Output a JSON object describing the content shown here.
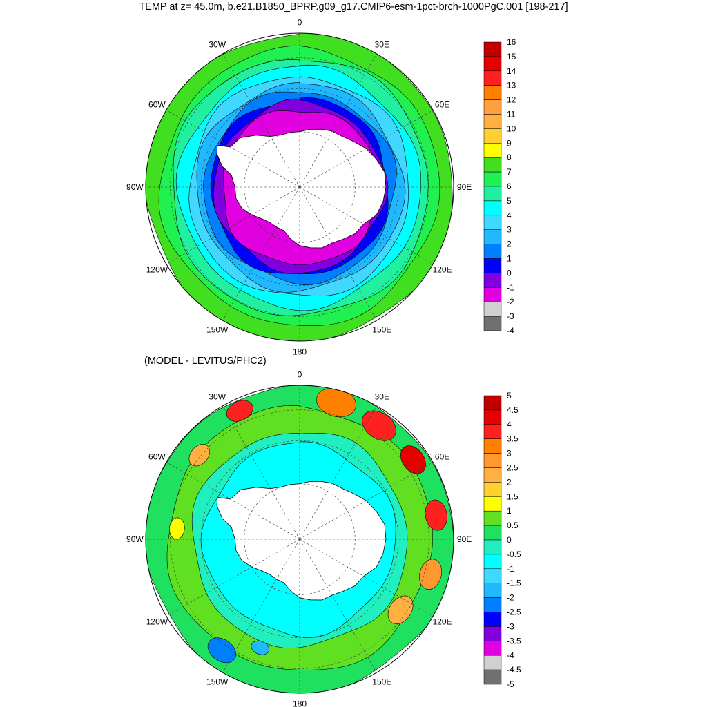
{
  "title": "TEMP at z=  45.0m, b.e21.B1850_BPRP.g09_g17.CMIP6-esm-1pct-brch-1000PgC.001 [198-217]",
  "subtitle": "(MODEL - LEVITUS/PHC2)",
  "lon_labels": [
    {
      "text": "0",
      "lon": 0
    },
    {
      "text": "30E",
      "lon": 30
    },
    {
      "text": "60E",
      "lon": 60
    },
    {
      "text": "90E",
      "lon": 90
    },
    {
      "text": "120E",
      "lon": 120
    },
    {
      "text": "150E",
      "lon": 150
    },
    {
      "text": "180",
      "lon": 180
    },
    {
      "text": "150W",
      "lon": -150
    },
    {
      "text": "120W",
      "lon": -120
    },
    {
      "text": "90W",
      "lon": -90
    },
    {
      "text": "60W",
      "lon": -60
    },
    {
      "text": "30W",
      "lon": -30
    }
  ],
  "panels": [
    {
      "name": "temperature",
      "colorbar": {
        "labels": [
          "16",
          "15",
          "14",
          "13",
          "12",
          "11",
          "10",
          "9",
          "8",
          "7",
          "6",
          "5",
          "4",
          "3",
          "2",
          "1",
          "0",
          "-1",
          "-2",
          "-3",
          "-4"
        ],
        "colors": [
          "#c00000",
          "#e80000",
          "#ff2020",
          "#ff8000",
          "#ffa040",
          "#ffb040",
          "#ffd030",
          "#ffff00",
          "#40e020",
          "#20f050",
          "#20f0a0",
          "#00ffff",
          "#40d8ff",
          "#20b8ff",
          "#0080ff",
          "#0000ff",
          "#8000e0",
          "#e000e0",
          "#d0d0d0",
          "#707070"
        ]
      },
      "field": {
        "bands": [
          {
            "rho": 1.0,
            "color": "#40e020"
          },
          {
            "rho": 0.9,
            "color": "#20f050"
          },
          {
            "rho": 0.84,
            "color": "#20f0a0"
          },
          {
            "rho": 0.78,
            "color": "#00ffff"
          },
          {
            "rho": 0.72,
            "color": "#40d8ff"
          },
          {
            "rho": 0.67,
            "color": "#20b8ff"
          },
          {
            "rho": 0.62,
            "color": "#0080ff"
          },
          {
            "rho": 0.58,
            "color": "#0000ff"
          },
          {
            "rho": 0.55,
            "color": "#8000e0"
          },
          {
            "rho": 0.51,
            "color": "#e000e0"
          }
        ]
      }
    },
    {
      "name": "model-minus-levitus",
      "colorbar": {
        "labels": [
          "5",
          "4.5",
          "4",
          "3.5",
          "3",
          "2.5",
          "2",
          "1.5",
          "1",
          "0.5",
          "0",
          "-0.5",
          "-1",
          "-1.5",
          "-2",
          "-2.5",
          "-3",
          "-3.5",
          "-4",
          "-4.5",
          "-5"
        ],
        "colors": [
          "#c00000",
          "#e80000",
          "#ff2020",
          "#ff8000",
          "#ff9830",
          "#ffb040",
          "#ffd030",
          "#ffff00",
          "#60e020",
          "#20e060",
          "#20f0c0",
          "#00ffff",
          "#40d8ff",
          "#20b8ff",
          "#0080ff",
          "#0000ff",
          "#8000e0",
          "#e000e0",
          "#d0d0d0",
          "#707070"
        ]
      },
      "field": {
        "bands": [
          {
            "rho": 1.0,
            "color": "#20e060"
          },
          {
            "rho": 0.86,
            "color": "#60e020"
          },
          {
            "rho": 0.7,
            "color": "#20f0c0"
          },
          {
            "rho": 0.62,
            "color": "#00ffff"
          }
        ],
        "blobs": [
          {
            "lon": 15,
            "rho": 0.92,
            "r": 0.13,
            "color": "#ff8000"
          },
          {
            "lon": 35,
            "rho": 0.9,
            "r": 0.12,
            "color": "#ff2020"
          },
          {
            "lon": 55,
            "rho": 0.9,
            "r": 0.1,
            "color": "#e80000"
          },
          {
            "lon": 80,
            "rho": 0.9,
            "r": 0.1,
            "color": "#ff2020"
          },
          {
            "lon": 105,
            "rho": 0.88,
            "r": 0.1,
            "color": "#ff9830"
          },
          {
            "lon": 125,
            "rho": 0.8,
            "r": 0.1,
            "color": "#ffb040"
          },
          {
            "lon": -25,
            "rho": 0.92,
            "r": 0.09,
            "color": "#ff2020"
          },
          {
            "lon": -50,
            "rho": 0.85,
            "r": 0.08,
            "color": "#ffb040"
          },
          {
            "lon": -85,
            "rho": 0.8,
            "r": 0.07,
            "color": "#ffff00"
          },
          {
            "lon": -145,
            "rho": 0.88,
            "r": 0.1,
            "color": "#0080ff"
          },
          {
            "lon": -160,
            "rho": 0.75,
            "r": 0.06,
            "color": "#20b8ff"
          }
        ]
      }
    }
  ]
}
